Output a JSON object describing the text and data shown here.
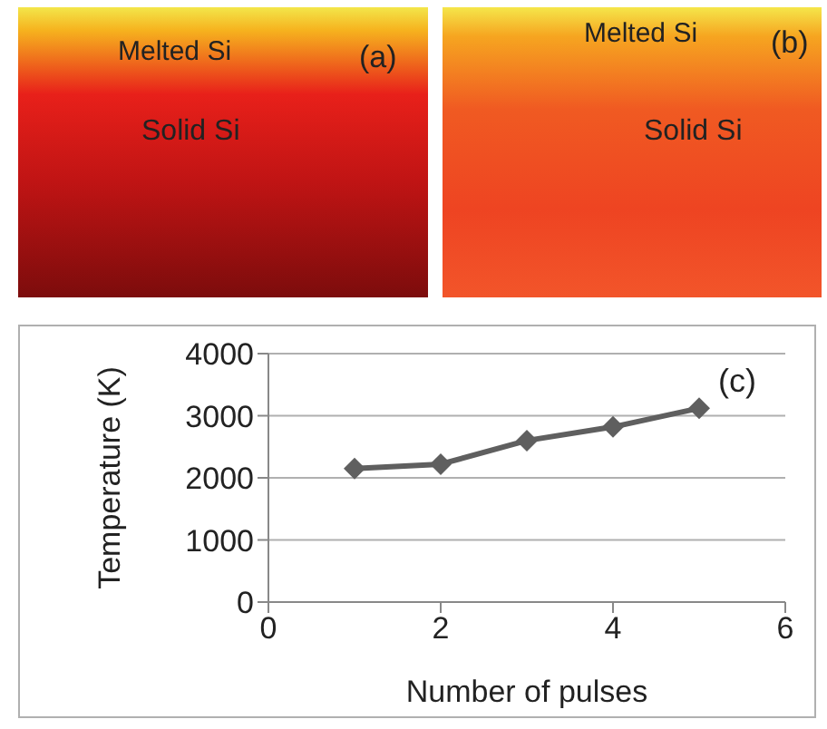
{
  "chart_data": {
    "type": "line",
    "xlabel": "Number of pulses",
    "ylabel": "Temperature (K)",
    "x": [
      1,
      2,
      3,
      4,
      5
    ],
    "series": [
      {
        "color": "#5f5f5f",
        "values": [
          2150,
          2220,
          2600,
          2820,
          3120
        ]
      }
    ],
    "xlim": [
      0,
      6
    ],
    "xticks": [
      0,
      2,
      4,
      6
    ],
    "ylim": [
      0,
      4000
    ],
    "yticks": [
      0,
      1000,
      2000,
      3000,
      4000
    ],
    "grid": "y",
    "marker": "diamond",
    "line_style": "solid",
    "annotations": [
      "Melted Si",
      "Solid Si",
      "(a)",
      "Melted Si",
      "Solid Si",
      "(b)",
      "(c)"
    ]
  }
}
